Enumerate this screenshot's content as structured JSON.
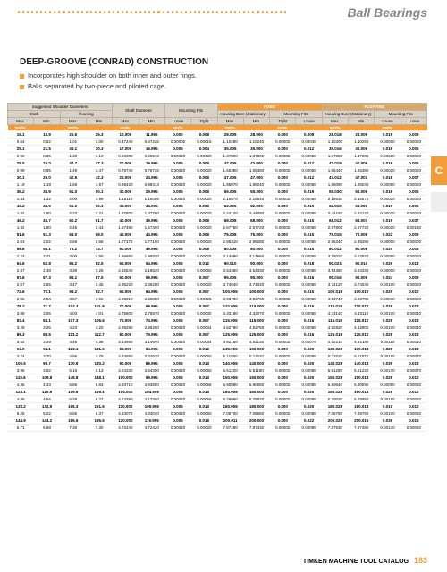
{
  "header": {
    "title": "Ball Bearings"
  },
  "side_tab": "C",
  "section": {
    "title": "DEEP-GROOVE (CONRAD) CONSTRUCTION",
    "bullets": [
      "Incorporates high shoulder on both inner and outer rings.",
      "Balls separated by two-piece and piloted cage."
    ]
  },
  "footer": {
    "text": "TIMKEN MACHINE TOOL CATALOG",
    "page": "183"
  },
  "table": {
    "group_headers": {
      "ssd": "Suggested Shoulder Diameters",
      "shaftd": "Shaft Diameter",
      "mfits": "Mounting Fits",
      "fixed": "FIXED",
      "floating": "FLOATING",
      "hb": "Housing Bore (Stationary)"
    },
    "sub1": {
      "shaft": "Shaft",
      "housing": "Housing"
    },
    "cols": [
      "Max.",
      "Min.",
      "Max.",
      "Min.",
      "Max.",
      "Min.",
      "Loose",
      "Tight",
      "Max.",
      "Min.",
      "Tight",
      "Loose",
      "Max.",
      "Min.",
      "Loose",
      "Loose"
    ],
    "unit_row": [
      "mm/in.",
      "",
      "mm/in.",
      "",
      "mm/in.",
      "",
      "mm/in.",
      "",
      "mm/in.",
      "",
      "mm/in.",
      "",
      "mm/in.",
      "",
      "mm/in.",
      ""
    ],
    "rows": [
      [
        "16.1",
        "15.9",
        "25.6",
        "25.3",
        "12.000",
        "11.995",
        "0.000",
        "0.008",
        "28.009",
        "28.000",
        "0.000",
        "0.009",
        "28.018",
        "28.009",
        "0.019",
        "0.009"
      ],
      [
        "0.64",
        "0.62",
        "1.01",
        "1.00",
        "0.47240",
        "0.47226",
        "0.00000",
        "0.00015",
        "1.10280",
        "1.10240",
        "0.00000",
        "0.00040",
        "1.10300",
        "1.10260",
        "0.00060",
        "0.00020"
      ],
      [
        "25.1",
        "21.5",
        "33.1",
        "30.3",
        "17.000",
        "16.995",
        "0.005",
        "0.004",
        "35.006",
        "35.000",
        "0.000",
        "0.012",
        "35.016",
        "35.006",
        "0.016",
        "0.006"
      ],
      [
        "0.98",
        "0.85",
        "1.30",
        "1.19",
        "0.66900",
        "0.66819",
        "0.00020",
        "0.00020",
        "1.37800",
        "1.37800",
        "0.00000",
        "0.00050",
        "1.37860",
        "1.37800",
        "0.00020",
        "0.00020"
      ],
      [
        "25.0",
        "24.0",
        "37.7",
        "37.3",
        "20.000",
        "19.995",
        "0.005",
        "0.005",
        "42.006",
        "42.000",
        "0.000",
        "0.012",
        "42.019",
        "42.006",
        "0.016",
        "0.006"
      ],
      [
        "0.99",
        "0.95",
        "1.49",
        "1.47",
        "0.78740",
        "0.78726",
        "0.00020",
        "0.00020",
        "1.65380",
        "1.65360",
        "0.00000",
        "0.00050",
        "1.65440",
        "1.65380",
        "0.00020",
        "0.00020"
      ],
      [
        "30.1",
        "29.0",
        "42.6",
        "42.3",
        "25.000",
        "24.995",
        "0.005",
        "0.005",
        "47.006",
        "47.000",
        "0.000",
        "0.012",
        "47.012",
        "47.001",
        "0.018",
        "0.007"
      ],
      [
        "1.19",
        "1.18",
        "1.68",
        "1.67",
        "0.98420",
        "0.98414",
        "0.00020",
        "0.00020",
        "1.85070",
        "1.85040",
        "0.00000",
        "0.00060",
        "1.85090",
        "1.85040",
        "0.00080",
        "0.00020"
      ],
      [
        "36.2",
        "35.9",
        "51.0",
        "50.1",
        "30.000",
        "29.995",
        "0.005",
        "0.005",
        "55.006",
        "55.000",
        "0.000",
        "0.019",
        "55.030",
        "55.006",
        "0.016",
        "0.006"
      ],
      [
        "1.43",
        "1.42",
        "2.00",
        "1.99",
        "1.18110",
        "1.18096",
        "0.00020",
        "0.00020",
        "2.16570",
        "2.16540",
        "0.00000",
        "0.00060",
        "2.16630",
        "2.16570",
        "0.00020",
        "0.00020"
      ],
      [
        "46.2",
        "45.9",
        "56.6",
        "56.1",
        "35.000",
        "34.995",
        "0.005",
        "0.005",
        "62.006",
        "62.000",
        "0.000",
        "0.019",
        "62.019",
        "62.006",
        "0.019",
        "0.006"
      ],
      [
        "1.82",
        "1.80",
        "2.23",
        "2.21",
        "1.37800",
        "1.37780",
        "0.00020",
        "0.00020",
        "2.44120",
        "2.44090",
        "0.00000",
        "0.00080",
        "2.44160",
        "2.44120",
        "0.00020",
        "0.00020"
      ],
      [
        "46.2",
        "45.7",
        "62.2",
        "61.7",
        "40.000",
        "39.995",
        "0.006",
        "0.006",
        "68.008",
        "68.000",
        "0.000",
        "0.015",
        "68.012",
        "68.007",
        "0.019",
        "0.037"
      ],
      [
        "1.82",
        "1.80",
        "2.45",
        "2.43",
        "1.57480",
        "1.57460",
        "0.00020",
        "0.00020",
        "2.67750",
        "2.67720",
        "0.00000",
        "0.00060",
        "2.67800",
        "2.67720",
        "0.00020",
        "0.00150"
      ],
      [
        "51.6",
        "51.3",
        "68.0",
        "68.0",
        "45.000",
        "44.995",
        "0.006",
        "0.006",
        "75.008",
        "75.000",
        "0.000",
        "0.015",
        "75.015",
        "75.008",
        "0.022",
        "0.009"
      ],
      [
        "2.03",
        "2.02",
        "2.68",
        "2.68",
        "1.77170",
        "1.77150",
        "0.00020",
        "0.00020",
        "2.95310",
        "2.95280",
        "0.00000",
        "0.00060",
        "2.95340",
        "2.95280",
        "0.00000",
        "0.00000"
      ],
      [
        "56.6",
        "56.1",
        "76.2",
        "73.7",
        "50.000",
        "49.995",
        "0.006",
        "0.006",
        "80.008",
        "80.000",
        "0.000",
        "0.015",
        "80.012",
        "80.008",
        "0.020",
        "0.008"
      ],
      [
        "2.23",
        "2.21",
        "3.00",
        "2.90",
        "1.96850",
        "1.96830",
        "0.00020",
        "0.00025",
        "3.14990",
        "3.14960",
        "0.00000",
        "0.00060",
        "3.15020",
        "3.14920",
        "0.00080",
        "0.00020"
      ],
      [
        "64.6",
        "62.8",
        "86.2",
        "82.5",
        "55.000",
        "54.995",
        "0.006",
        "0.012",
        "90.010",
        "90.000",
        "0.000",
        "0.018",
        "90.023",
        "90.010",
        "0.026",
        "0.013"
      ],
      [
        "2.47",
        "2.48",
        "3.39",
        "3.26",
        "2.16540",
        "2.16520",
        "0.00020",
        "0.00050",
        "3.54360",
        "3.54330",
        "0.00000",
        "0.00080",
        "3.54360",
        "3.54330",
        "0.00000",
        "0.00020"
      ],
      [
        "67.6",
        "67.3",
        "88.1",
        "87.5",
        "60.000",
        "59.995",
        "0.006",
        "0.007",
        "95.006",
        "95.000",
        "0.000",
        "0.016",
        "95.016",
        "95.005",
        "0.024",
        "0.009"
      ],
      [
        "2.67",
        "2.65",
        "3.47",
        "3.45",
        "2.36220",
        "2.36200",
        "0.00020",
        "0.00020",
        "3.74040",
        "3.74020",
        "0.00000",
        "0.00060",
        "3.74120",
        "3.74040",
        "0.00180",
        "0.00020"
      ],
      [
        "72.6",
        "72.1",
        "93.2",
        "92.7",
        "65.000",
        "64.995",
        "0.006",
        "0.007",
        "100.006",
        "100.000",
        "0.000",
        "0.015",
        "100.018",
        "100.010",
        "0.025",
        "0.010"
      ],
      [
        "2.86",
        "2.84",
        "3.67",
        "3.65",
        "2.55910",
        "2.55880",
        "0.00020",
        "0.00025",
        "3.93730",
        "3.93700",
        "0.00000",
        "0.00060",
        "3.93740",
        "3.93700",
        "0.00040",
        "0.00020"
      ],
      [
        "78.2",
        "71.7",
        "102.4",
        "101.9",
        "70.000",
        "69.995",
        "0.006",
        "0.007",
        "110.006",
        "110.000",
        "0.000",
        "0.016",
        "110.018",
        "110.010",
        "0.025",
        "0.018"
      ],
      [
        "3.08",
        "3.06",
        "4.03",
        "4.01",
        "2.75600",
        "2.75570",
        "0.00020",
        "0.00030",
        "4.33180",
        "4.33070",
        "0.00000",
        "0.00060",
        "4.33140",
        "4.33110",
        "0.00100",
        "0.00040"
      ],
      [
        "83.4",
        "83.1",
        "107.3",
        "106.6",
        "75.000",
        "74.995",
        "0.006",
        "0.007",
        "115.006",
        "115.000",
        "0.000",
        "0.016",
        "115.018",
        "115.012",
        "0.028",
        "0.018"
      ],
      [
        "3.29",
        "3.26",
        "4.23",
        "4.20",
        "2.95280",
        "2.95260",
        "0.00020",
        "0.00034",
        "4.52790",
        "4.52760",
        "0.00000",
        "0.00060",
        "4.52820",
        "4.52800",
        "0.00100",
        "0.00040"
      ],
      [
        "89.3",
        "88.6",
        "113.2",
        "112.7",
        "80.000",
        "79.995",
        "0.006",
        "0.007",
        "125.006",
        "125.000",
        "0.000",
        "0.016",
        "125.018",
        "125.012",
        "0.028",
        "0.018"
      ],
      [
        "3.52",
        "3.49",
        "4.46",
        "4.38",
        "3.14960",
        "3.14940",
        "0.00020",
        "0.00034",
        "4.92160",
        "4.92130",
        "0.00000",
        "0.00070",
        "4.92210",
        "4.92180",
        "0.00110",
        "0.00040"
      ],
      [
        "94.9",
        "94.1",
        "123.1",
        "121.5",
        "85.000",
        "84.995",
        "0.006",
        "0.012",
        "130.006",
        "130.000",
        "0.000",
        "0.020",
        "130.026",
        "130.018",
        "0.028",
        "0.018"
      ],
      [
        "3.74",
        "3.70",
        "4.85",
        "4.79",
        "3.34650",
        "3.34620",
        "0.00020",
        "0.00050",
        "5.11850",
        "5.11810",
        "0.00000",
        "0.00080",
        "5.11910",
        "5.11870",
        "0.00110",
        "0.00070"
      ],
      [
        "100.5",
        "99.7",
        "130.9",
        "130.2",
        "90.000",
        "89.995",
        "0.006",
        "0.013",
        "140.006",
        "140.000",
        "0.000",
        "0.020",
        "140.028",
        "140.018",
        "0.039",
        "0.018"
      ],
      [
        "3.96",
        "3.92",
        "5.15",
        "5.13",
        "3.54330",
        "3.54300",
        "0.00020",
        "0.00050",
        "5.51220",
        "5.51180",
        "0.00000",
        "0.00080",
        "5.51280",
        "5.51220",
        "0.00170",
        "0.00070"
      ],
      [
        "110.6",
        "109.8",
        "148.8",
        "148.1",
        "100.000",
        "99.995",
        "0.006",
        "0.013",
        "150.006",
        "150.000",
        "0.000",
        "0.020",
        "150.028",
        "150.018",
        "0.028",
        "0.012"
      ],
      [
        "4.36",
        "4.33",
        "5.86",
        "5.83",
        "3.93710",
        "3.93680",
        "0.00020",
        "0.00058",
        "5.90590",
        "5.90550",
        "0.00000",
        "0.00080",
        "5.90640",
        "5.90590",
        "0.00080",
        "0.00050"
      ],
      [
        "123.1",
        "120.5",
        "159.6",
        "159.1",
        "105.000",
        "104.995",
        "0.006",
        "0.013",
        "160.006",
        "160.000",
        "0.000",
        "0.020",
        "160.028",
        "160.018",
        "0.028",
        "0.012"
      ],
      [
        "4.85",
        "4.66",
        "6.28",
        "6.27",
        "4.13390",
        "4.13360",
        "0.00020",
        "0.00056",
        "6.29990",
        "6.29920",
        "0.00000",
        "0.00080",
        "6.30030",
        "6.29950",
        "0.00110",
        "0.00050"
      ],
      [
        "133.2",
        "132.5",
        "166.3",
        "161.5",
        "110.000",
        "109.995",
        "0.005",
        "0.013",
        "180.006",
        "180.000",
        "0.000",
        "0.020",
        "180.028",
        "180.018",
        "0.010",
        "0.012"
      ],
      [
        "5.25",
        "5.22",
        "6.55",
        "6.37",
        "4.33070",
        "4.33040",
        "0.00020",
        "0.00050",
        "7.08700",
        "7.08660",
        "0.00000",
        "0.00080",
        "7.08780",
        "7.08760",
        "0.00100",
        "0.00050"
      ],
      [
        "144.9",
        "144.2",
        "186.6",
        "185.5",
        "120.000",
        "119.995",
        "0.005",
        "0.015",
        "200.011",
        "200.000",
        "0.000",
        "0.022",
        "200.025",
        "200.015",
        "0.036",
        "0.015"
      ],
      [
        "5.71",
        "5.68",
        "7.35",
        "7.30",
        "4.72440",
        "4.72420",
        "0.00020",
        "0.00020",
        "7.87490",
        "7.87430",
        "0.00000",
        "0.00090",
        "7.87530",
        "7.87480",
        "0.00140",
        "0.00060"
      ]
    ]
  }
}
